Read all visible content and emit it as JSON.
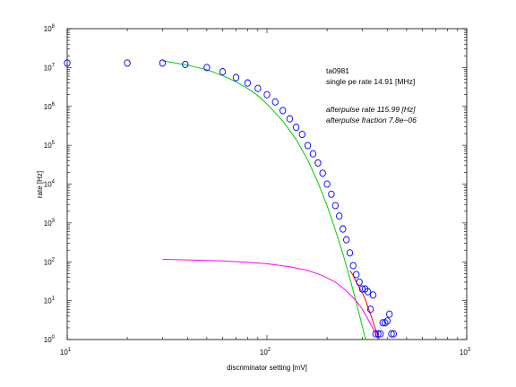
{
  "chart_data": {
    "type": "scatter",
    "xscale": "log",
    "yscale": "log",
    "xlim": [
      10,
      1000
    ],
    "ylim": [
      1,
      100000000
    ],
    "xlabel": "discriminator setting [mV]",
    "ylabel": "rate [Hz]",
    "x_ticks": [
      {
        "base": "10",
        "exp": "1"
      },
      {
        "base": "10",
        "exp": "2"
      },
      {
        "base": "10",
        "exp": "3"
      }
    ],
    "y_ticks": [
      {
        "base": "10",
        "exp": "0"
      },
      {
        "base": "10",
        "exp": "1"
      },
      {
        "base": "10",
        "exp": "2"
      },
      {
        "base": "10",
        "exp": "3"
      },
      {
        "base": "10",
        "exp": "4"
      },
      {
        "base": "10",
        "exp": "5"
      },
      {
        "base": "10",
        "exp": "6"
      },
      {
        "base": "10",
        "exp": "7"
      },
      {
        "base": "10",
        "exp": "8"
      }
    ],
    "annotations": {
      "id": "ta0981",
      "single_pe": "single pe rate 14.91 [MHz]",
      "afterpulse_rate": "afterpulse rate 115.99 [Hz]",
      "afterpulse_fraction": "afterpulse fraction 7.8e−06"
    },
    "colors": {
      "markers": "#0000ff",
      "fit_main": "#00cc00",
      "fit_afterpulse": "#ff00ff",
      "fit_sum": "#ff0000"
    },
    "series": [
      {
        "type": "scatter",
        "marker": "open-circle",
        "points": [
          [
            10,
            13000000
          ],
          [
            20,
            13000000
          ],
          [
            30,
            13000000
          ],
          [
            39,
            12000000
          ],
          [
            50,
            10000000
          ],
          [
            60,
            7800000
          ],
          [
            70,
            5500000
          ],
          [
            80,
            4000000
          ],
          [
            90,
            2900000
          ],
          [
            100,
            2000000
          ],
          [
            110,
            1300000
          ],
          [
            120,
            780000
          ],
          [
            130,
            480000
          ],
          [
            140,
            290000
          ],
          [
            150,
            190000
          ],
          [
            160,
            98000
          ],
          [
            170,
            60000
          ],
          [
            180,
            35000
          ],
          [
            190,
            19000
          ],
          [
            200,
            10000
          ],
          [
            210,
            5500
          ],
          [
            220,
            2800
          ],
          [
            230,
            1500
          ],
          [
            240,
            700
          ],
          [
            250,
            370
          ],
          [
            260,
            170
          ],
          [
            270,
            80
          ],
          [
            280,
            47
          ],
          [
            290,
            30
          ],
          [
            300,
            20
          ],
          [
            310,
            20
          ],
          [
            320,
            17
          ],
          [
            330,
            6
          ],
          [
            340,
            14
          ],
          [
            350,
            1.4
          ],
          [
            360,
            1.4
          ],
          [
            370,
            1.4
          ],
          [
            380,
            2.7
          ],
          [
            390,
            2.7
          ],
          [
            400,
            3.0
          ],
          [
            410,
            4.5
          ],
          [
            420,
            1.4
          ],
          [
            430,
            1.4
          ]
        ]
      },
      {
        "type": "line",
        "name": "",
        "points": [
          [
            30,
            15000000
          ],
          [
            40,
            11500000
          ],
          [
            50,
            8800000
          ],
          [
            60,
            6200000
          ],
          [
            70,
            4300000
          ],
          [
            80,
            2900000
          ],
          [
            90,
            1900000
          ],
          [
            100,
            1150000
          ],
          [
            120,
            420000
          ],
          [
            140,
            140000
          ],
          [
            160,
            42000
          ],
          [
            180,
            11000
          ],
          [
            200,
            2800
          ],
          [
            220,
            650
          ],
          [
            240,
            160
          ],
          [
            260,
            38
          ],
          [
            280,
            9
          ],
          [
            300,
            2.2
          ],
          [
            310,
            1.1
          ],
          [
            315,
            1.0
          ]
        ]
      },
      {
        "type": "line",
        "name": "",
        "points": [
          [
            30,
            116
          ],
          [
            40,
            112
          ],
          [
            60,
            105
          ],
          [
            80,
            97
          ],
          [
            100,
            89
          ],
          [
            130,
            75
          ],
          [
            160,
            60
          ],
          [
            190,
            44
          ],
          [
            220,
            30
          ],
          [
            250,
            18
          ],
          [
            280,
            9.8
          ],
          [
            300,
            6.0
          ],
          [
            320,
            3.4
          ],
          [
            340,
            1.9
          ],
          [
            360,
            1.0
          ]
        ]
      },
      {
        "type": "line",
        "name": "",
        "points": [
          [
            260,
            60
          ],
          [
            270,
            45
          ],
          [
            280,
            30
          ],
          [
            290,
            22
          ],
          [
            300,
            16
          ],
          [
            310,
            11
          ],
          [
            320,
            7
          ],
          [
            330,
            4.5
          ],
          [
            340,
            2.8
          ],
          [
            350,
            1.8
          ],
          [
            365,
            1.0
          ]
        ]
      }
    ]
  }
}
